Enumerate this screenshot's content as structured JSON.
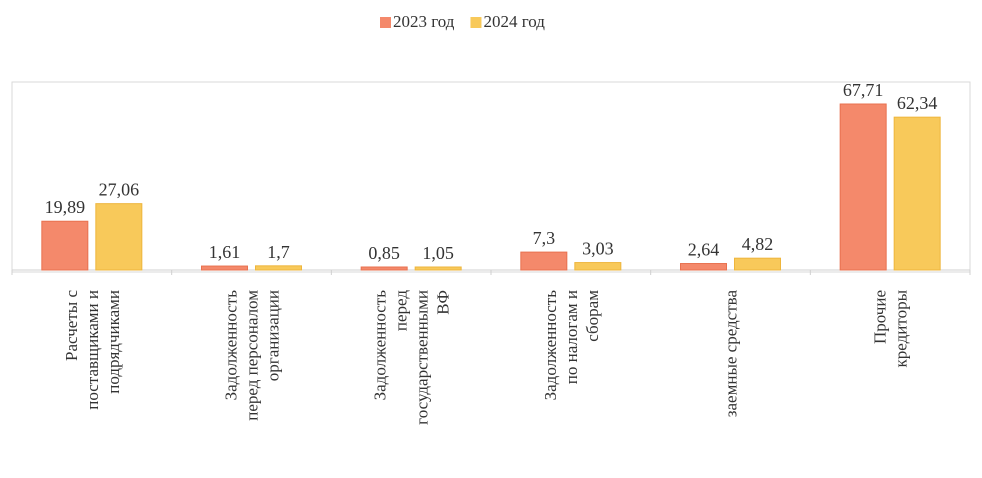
{
  "chart_data": {
    "type": "bar",
    "title": "",
    "xlabel": "",
    "ylabel": "",
    "ylim": [
      0,
      75
    ],
    "grid": false,
    "legend_position": "top",
    "categories": [
      [
        "Расчеты с",
        "поставщиками и",
        "подрядчиками"
      ],
      [
        "Задолженность",
        "перед персоналом",
        "организации"
      ],
      [
        "Задолженность",
        "перед",
        "государственными",
        "ВФ"
      ],
      [
        "Задолженность",
        "по налогам и",
        "сборам"
      ],
      [
        "заемные средства"
      ],
      [
        "Прочие",
        "кредиторы"
      ]
    ],
    "series": [
      {
        "name": "2023 год",
        "color": "#f4896b",
        "values": [
          19.89,
          1.61,
          0.85,
          7.3,
          2.64,
          67.71
        ],
        "labels": [
          "19,89",
          "1,61",
          "0,85",
          "7,3",
          "2,64",
          "67,71"
        ]
      },
      {
        "name": "2024 год",
        "color": "#f8c95a",
        "values": [
          27.06,
          1.7,
          1.05,
          3.03,
          4.82,
          62.34
        ],
        "labels": [
          "27,06",
          "1,7",
          "1,05",
          "3,03",
          "4,82",
          "62,34"
        ]
      }
    ]
  }
}
